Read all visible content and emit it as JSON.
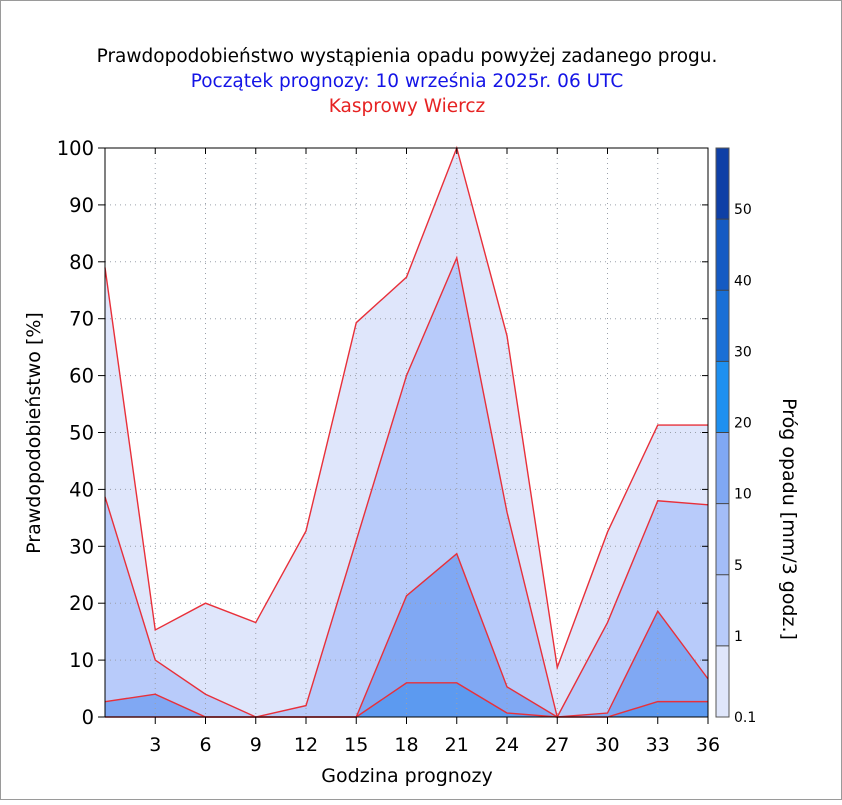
{
  "chart_data": {
    "type": "area",
    "title": "Prawdopodobieństwo wystąpienia opadu powyżej zadanego progu.",
    "subtitle": "Początek prognozy: 10 września 2025r. 06 UTC",
    "location": "Kasprowy Wiercz",
    "xlabel": "Godzina prognozy",
    "ylabel": "Prawdopodobieństwo [%]",
    "colorbar_label": "Próg opadu [mm/3 godz.]",
    "x": [
      0,
      3,
      6,
      9,
      12,
      15,
      18,
      21,
      24,
      27,
      30,
      33,
      36
    ],
    "xticks": [
      3,
      6,
      9,
      12,
      15,
      18,
      21,
      24,
      27,
      30,
      33,
      36
    ],
    "xlim": [
      0,
      36
    ],
    "ylim": [
      0,
      100
    ],
    "yticks": [
      0,
      10,
      20,
      30,
      40,
      50,
      60,
      70,
      80,
      90,
      100
    ],
    "grid": true,
    "line_color": "#e8303a",
    "series": [
      {
        "name": "0.1",
        "color": "#dfe6fb",
        "values": [
          79,
          15.3,
          20,
          16.6,
          32.7,
          69.3,
          77.3,
          100,
          67,
          8.7,
          32.5,
          51.3,
          51.3
        ]
      },
      {
        "name": "1",
        "color": "#b8cbfa",
        "values": [
          38.7,
          10,
          4,
          0,
          2,
          31,
          60,
          80.7,
          36,
          0,
          16.6,
          38,
          37.3
        ]
      },
      {
        "name": "5",
        "color": "#80a8f3",
        "values": [
          2.7,
          4,
          0,
          0,
          0,
          0,
          21.3,
          28.7,
          5.3,
          0,
          0.7,
          18.6,
          6.7
        ]
      },
      {
        "name": "10",
        "color": "#5c9af0",
        "values": [
          0,
          0,
          0,
          0,
          0,
          0,
          6,
          6,
          0.7,
          0,
          0,
          2.7,
          2.7
        ]
      }
    ],
    "colorbar": {
      "labels": [
        "0.1",
        "1",
        "5",
        "10",
        "20",
        "30",
        "40",
        "50"
      ],
      "colors": [
        "#dfe6fb",
        "#b8cbfa",
        "#a3bdf8",
        "#80a8f3",
        "#1e90f0",
        "#1a6fd6",
        "#155ac3",
        "#0e3fa6"
      ]
    }
  }
}
